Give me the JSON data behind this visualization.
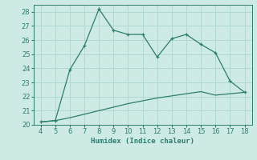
{
  "xlabel": "Humidex (Indice chaleur)",
  "ylabel": "",
  "x_main": [
    4,
    5,
    6,
    7,
    8,
    9,
    10,
    11,
    12,
    13,
    14,
    15,
    16,
    17,
    18
  ],
  "y_main": [
    20.2,
    20.3,
    23.9,
    25.6,
    28.2,
    26.7,
    26.4,
    26.4,
    24.8,
    26.1,
    26.4,
    25.7,
    25.1,
    23.1,
    22.3
  ],
  "x_line2": [
    4,
    5,
    6,
    7,
    8,
    9,
    10,
    11,
    12,
    13,
    14,
    15,
    16,
    17,
    18
  ],
  "y_line2": [
    20.2,
    20.3,
    20.5,
    20.75,
    21.0,
    21.25,
    21.5,
    21.7,
    21.9,
    22.05,
    22.2,
    22.35,
    22.1,
    22.2,
    22.3
  ],
  "line_color": "#2e7d6e",
  "bg_color": "#cdeae5",
  "grid_color": "#b2d8d2",
  "xlim": [
    3.5,
    18.5
  ],
  "ylim": [
    20,
    28.5
  ],
  "xticks": [
    4,
    5,
    6,
    7,
    8,
    9,
    10,
    11,
    12,
    13,
    14,
    15,
    16,
    17,
    18
  ],
  "yticks": [
    20,
    21,
    22,
    23,
    24,
    25,
    26,
    27,
    28
  ],
  "label_fontsize": 6.5,
  "tick_fontsize": 6
}
